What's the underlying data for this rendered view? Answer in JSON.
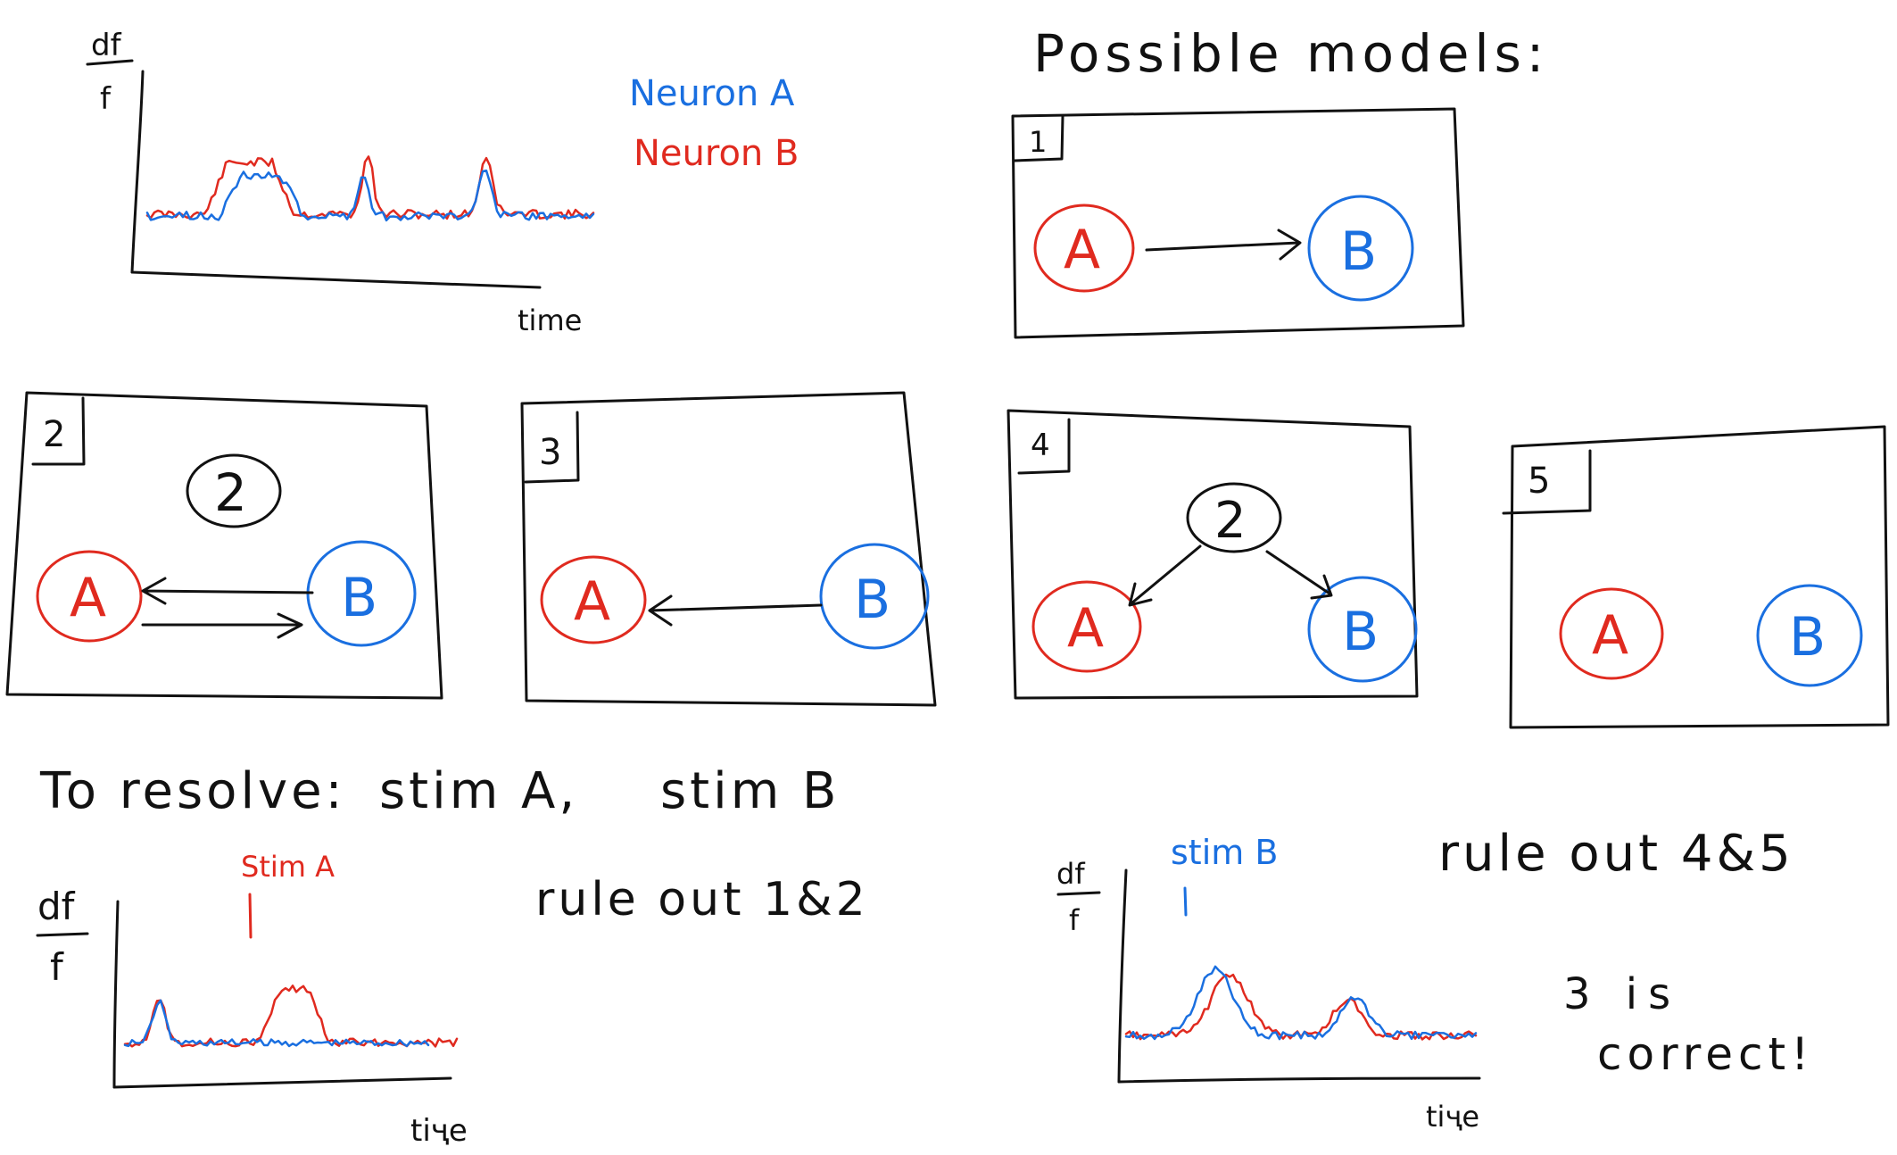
{
  "title": "Possible models:",
  "legend": [
    {
      "label": "Neuron A",
      "color": "#1a6fe0"
    },
    {
      "label": "Neuron B",
      "color": "#e02a1f"
    }
  ],
  "axis": {
    "ylabel_num": "df",
    "ylabel_den": "f",
    "xlabel": "time",
    "xlabel_variant": "tiҷe"
  },
  "colors": {
    "red": "#e02a1f",
    "blue": "#1a6fe0",
    "ink": "#111111"
  },
  "models": [
    {
      "number": "1",
      "description": "A -> B",
      "nodes": [
        "A",
        "B"
      ]
    },
    {
      "number": "2",
      "description": "A <-> B with hidden 2",
      "nodes": [
        "A",
        "B"
      ],
      "hidden": "2"
    },
    {
      "number": "3",
      "description": "B -> A",
      "nodes": [
        "A",
        "B"
      ]
    },
    {
      "number": "4",
      "description": "hidden 2 drives A and B",
      "nodes": [
        "A",
        "B"
      ],
      "hidden": "2"
    },
    {
      "number": "5",
      "description": "no connection",
      "nodes": [
        "A",
        "B"
      ]
    }
  ],
  "resolve_text": {
    "to_resolve": "To resolve:",
    "stim_a": "stim A,",
    "stim_b": "stim B"
  },
  "stim_labels": {
    "stim_a": "Stim A",
    "stim_b": "stim B"
  },
  "conclusions": {
    "rule_out_12": "rule out 1&2",
    "rule_out_45": "rule out 4&5",
    "correct_1": "3 is",
    "correct_2": "correct!"
  }
}
